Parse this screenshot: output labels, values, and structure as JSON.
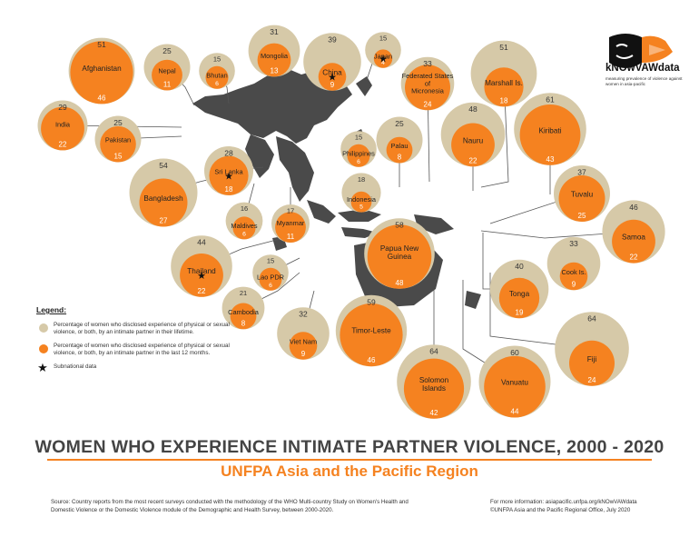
{
  "title": "WOMEN WHO EXPERIENCE INTIMATE PARTNER VIOLENCE, 2000 - 2020",
  "subtitle": "UNFPA Asia and the Pacific Region",
  "source": "Source: Country reports from the most recent surveys conducted with the methodology of the WHO Multi-country Study on Women's Health and Domestic Violence or the Domestic Violence module of the Demographic and Health Survey, between 2000-2020.",
  "info_line1": "For more information: asiapacific.unfpa.org/kNOwVAWdata",
  "info_line2": "©UNFPA Asia and the Pacific Regional Office, July 2020",
  "logo": {
    "name": "kNOwVAWdata",
    "tagline": "measuring prevalence of violence against women in asia-pacific"
  },
  "legend": {
    "title": "Legend:",
    "lifetime": "Percentage of women who disclosed experience of physical or sexual violence, or both, by an intimate partner in their lifetime.",
    "last12": "Percentage of women who disclosed experience of physical or sexual violence, or both, by an intimate partner in the last 12 months.",
    "subnational": "Subnational data"
  },
  "colors": {
    "lifetime": "#d6c9a8",
    "last12": "#f58220",
    "map": "#4a4a4a",
    "connector": "#555555"
  },
  "countries": [
    {
      "name": "Afghanistan",
      "lifetime": 51,
      "last12": 46,
      "subnational": false
    },
    {
      "name": "Nepal",
      "lifetime": 25,
      "last12": 11,
      "subnational": false
    },
    {
      "name": "Bhutan",
      "lifetime": 15,
      "last12": 6,
      "subnational": false
    },
    {
      "name": "Mongolia",
      "lifetime": 31,
      "last12": 13,
      "subnational": false
    },
    {
      "name": "China",
      "lifetime": 39,
      "last12": 9,
      "subnational": true
    },
    {
      "name": "Japan",
      "lifetime": 15,
      "last12": 4,
      "subnational": true
    },
    {
      "name": "Federated States of Micronesia",
      "lifetime": 33,
      "last12": 24,
      "subnational": false
    },
    {
      "name": "Marshall Is.",
      "lifetime": 51,
      "last12": 18,
      "subnational": false
    },
    {
      "name": "India",
      "lifetime": 29,
      "last12": 22,
      "subnational": false
    },
    {
      "name": "Pakistan",
      "lifetime": 25,
      "last12": 15,
      "subnational": false
    },
    {
      "name": "Bangladesh",
      "lifetime": 54,
      "last12": 27,
      "subnational": false
    },
    {
      "name": "Sri Lanka",
      "lifetime": 28,
      "last12": 18,
      "subnational": true
    },
    {
      "name": "Philippines",
      "lifetime": 15,
      "last12": 6,
      "subnational": false
    },
    {
      "name": "Palau",
      "lifetime": 25,
      "last12": 8,
      "subnational": false
    },
    {
      "name": "Nauru",
      "lifetime": 48,
      "last12": 22,
      "subnational": false
    },
    {
      "name": "Kiribati",
      "lifetime": 61,
      "last12": 43,
      "subnational": false
    },
    {
      "name": "Maldives",
      "lifetime": 16,
      "last12": 6,
      "subnational": false
    },
    {
      "name": "Myanmar",
      "lifetime": 17,
      "last12": 11,
      "subnational": false
    },
    {
      "name": "Indonesia",
      "lifetime": 18,
      "last12": 5,
      "subnational": false
    },
    {
      "name": "Tuvalu",
      "lifetime": 37,
      "last12": 25,
      "subnational": false
    },
    {
      "name": "Thailand",
      "lifetime": 44,
      "last12": 22,
      "subnational": true
    },
    {
      "name": "Lao PDR",
      "lifetime": 15,
      "last12": 6,
      "subnational": false
    },
    {
      "name": "Papua New Guinea",
      "lifetime": 58,
      "last12": 48,
      "subnational": false
    },
    {
      "name": "Samoa",
      "lifetime": 46,
      "last12": 22,
      "subnational": false
    },
    {
      "name": "Cook Is.",
      "lifetime": 33,
      "last12": 9,
      "subnational": false
    },
    {
      "name": "Tonga",
      "lifetime": 40,
      "last12": 19,
      "subnational": false
    },
    {
      "name": "Cambodia",
      "lifetime": 21,
      "last12": 8,
      "subnational": false
    },
    {
      "name": "Viet Nam",
      "lifetime": 32,
      "last12": 9,
      "subnational": false
    },
    {
      "name": "Timor-Leste",
      "lifetime": 59,
      "last12": 46,
      "subnational": false
    },
    {
      "name": "Solomon Islands",
      "lifetime": 64,
      "last12": 42,
      "subnational": false
    },
    {
      "name": "Vanuatu",
      "lifetime": 60,
      "last12": 44,
      "subnational": false
    },
    {
      "name": "Fiji",
      "lifetime": 64,
      "last12": 24,
      "subnational": false
    }
  ]
}
